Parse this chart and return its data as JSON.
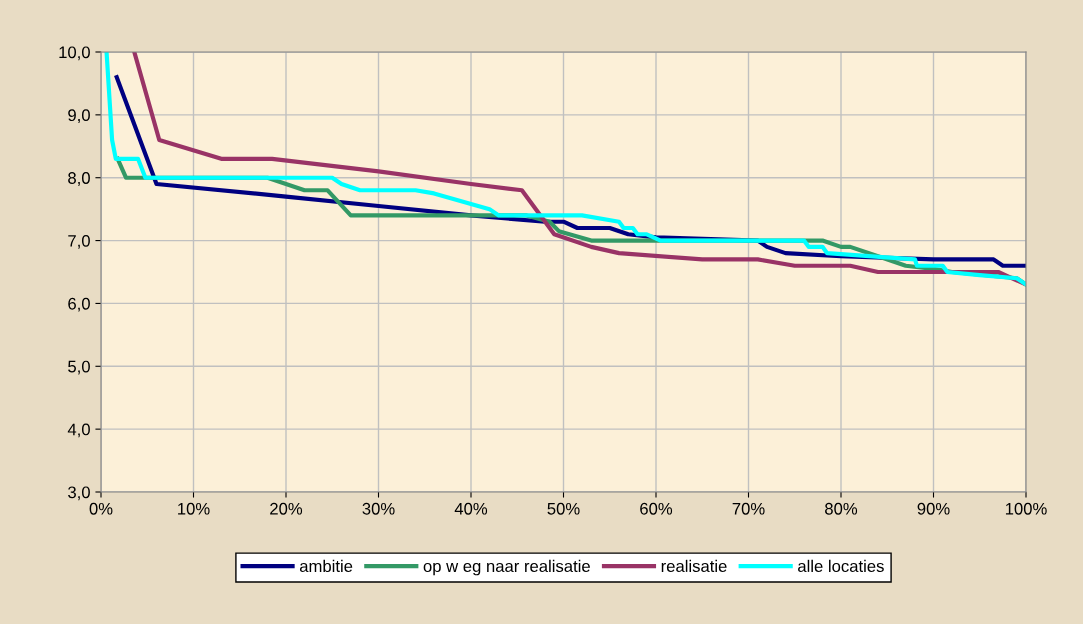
{
  "chart_data": {
    "type": "line",
    "xlim": [
      0,
      100
    ],
    "ylim": [
      3,
      10
    ],
    "xticks": [
      {
        "value": 0,
        "label": "0%"
      },
      {
        "value": 10,
        "label": "10%"
      },
      {
        "value": 20,
        "label": "20%"
      },
      {
        "value": 30,
        "label": "30%"
      },
      {
        "value": 40,
        "label": "40%"
      },
      {
        "value": 50,
        "label": "50%"
      },
      {
        "value": 60,
        "label": "60%"
      },
      {
        "value": 70,
        "label": "70%"
      },
      {
        "value": 80,
        "label": "80%"
      },
      {
        "value": 90,
        "label": "90%"
      },
      {
        "value": 100,
        "label": "100%"
      }
    ],
    "yticks": [
      {
        "value": 3,
        "label": "3,0"
      },
      {
        "value": 4,
        "label": "4,0"
      },
      {
        "value": 5,
        "label": "5,0"
      },
      {
        "value": 6,
        "label": "6,0"
      },
      {
        "value": 7,
        "label": "7,0"
      },
      {
        "value": 8,
        "label": "8,0"
      },
      {
        "value": 9,
        "label": "9,0"
      },
      {
        "value": 10,
        "label": "10,0"
      }
    ],
    "grid": true,
    "legend": "bottom",
    "marker": "none",
    "line_style": "solid",
    "series": [
      {
        "name": "ambitie",
        "color": "#000080",
        "x": [
          1.7,
          6,
          20,
          30,
          40,
          48,
          50,
          51.5,
          55,
          57,
          60,
          71,
          72,
          74,
          80,
          90,
          96.5,
          97.5,
          100
        ],
        "values": [
          9.6,
          7.9,
          7.7,
          7.55,
          7.4,
          7.3,
          7.3,
          7.2,
          7.2,
          7.1,
          7.05,
          7.0,
          6.9,
          6.8,
          6.75,
          6.7,
          6.7,
          6.6,
          6.6
        ]
      },
      {
        "name": "op w eg naar realisatie",
        "color": "#339966",
        "x": [
          1.8,
          2.7,
          18,
          22,
          24.5,
          27,
          46,
          48.5,
          49.5,
          53,
          60,
          78,
          80,
          81,
          84,
          87,
          90,
          92,
          99,
          100
        ],
        "values": [
          8.3,
          8.0,
          8.0,
          7.8,
          7.8,
          7.4,
          7.4,
          7.3,
          7.15,
          7.0,
          7.0,
          7.0,
          6.9,
          6.9,
          6.75,
          6.6,
          6.55,
          6.5,
          6.4,
          6.3
        ]
      },
      {
        "name": "realisatie",
        "color": "#993366",
        "x": [
          3.6,
          6.3,
          13,
          18.5,
          30,
          40,
          45.5,
          49,
          53,
          56,
          65,
          71,
          75,
          81,
          84,
          97,
          100
        ],
        "values": [
          10.0,
          8.6,
          8.3,
          8.3,
          8.1,
          7.9,
          7.8,
          7.1,
          6.9,
          6.8,
          6.7,
          6.7,
          6.6,
          6.6,
          6.5,
          6.5,
          6.3
        ]
      },
      {
        "name": "alle locaties",
        "color": "#00ffff",
        "x": [
          0.6,
          1.2,
          1.6,
          4,
          4.8,
          25,
          26,
          28,
          34,
          36,
          42,
          43,
          50,
          52,
          56,
          56.5,
          57.5,
          58,
          59,
          60.5,
          76,
          76.5,
          78,
          78.5,
          88,
          88.2,
          91,
          91.5,
          95,
          99,
          100
        ],
        "values": [
          10.0,
          8.6,
          8.3,
          8.3,
          8.0,
          8.0,
          7.9,
          7.8,
          7.8,
          7.75,
          7.5,
          7.4,
          7.4,
          7.4,
          7.3,
          7.2,
          7.2,
          7.1,
          7.1,
          7.0,
          7.0,
          6.9,
          6.9,
          6.8,
          6.7,
          6.6,
          6.6,
          6.5,
          6.45,
          6.4,
          6.3
        ]
      }
    ]
  }
}
